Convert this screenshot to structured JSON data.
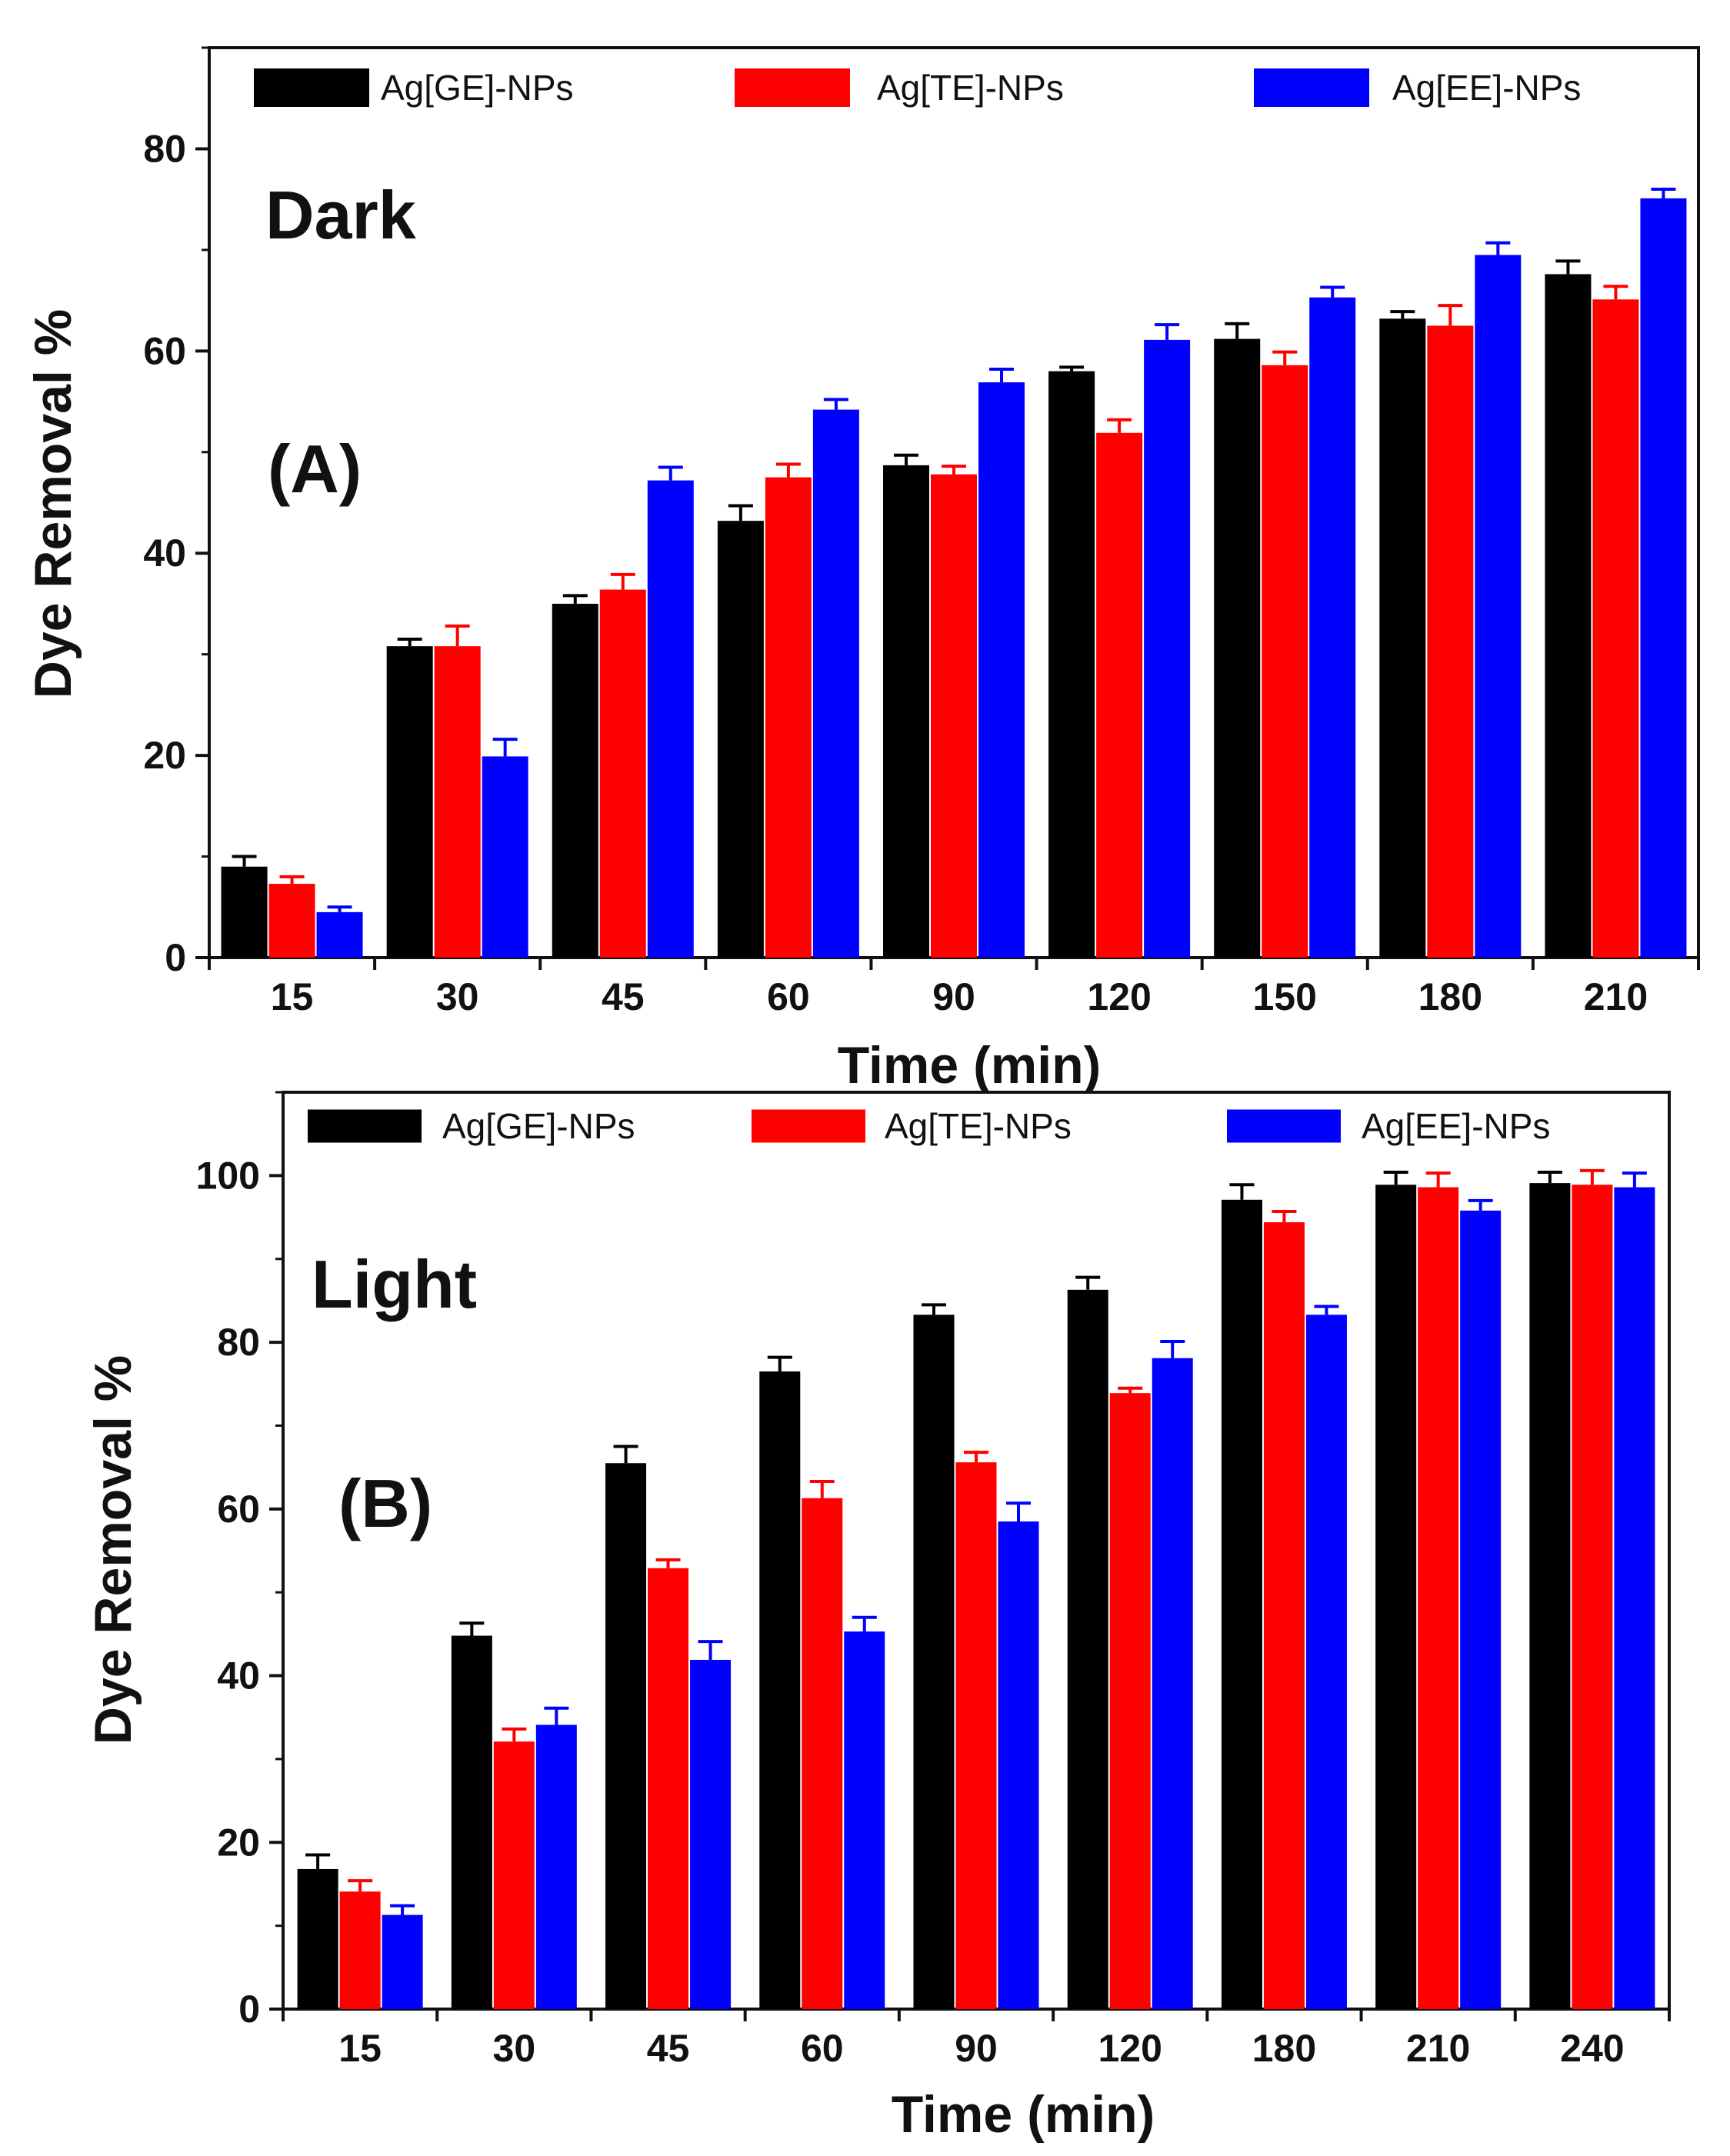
{
  "chart_data": [
    {
      "type": "bar",
      "panel": "(A)",
      "condition": "Dark",
      "xlabel": "Time (min)",
      "ylabel": "Dye Removal %",
      "ylim": [
        0,
        90
      ],
      "yticks": [
        0,
        20,
        40,
        60,
        80
      ],
      "categories": [
        "15",
        "30",
        "45",
        "60",
        "90",
        "120",
        "150",
        "180",
        "210"
      ],
      "series": [
        {
          "name": "Ag[GE]-NPs",
          "color": "#000000",
          "values": [
            9,
            30.8,
            35,
            43.2,
            48.7,
            58,
            61.2,
            63.2,
            67.6
          ],
          "errors": [
            1,
            0.7,
            0.8,
            1.5,
            1,
            0.4,
            1.5,
            0.7,
            1.3
          ]
        },
        {
          "name": "Ag[TE]-NPs",
          "color": "#ff0000",
          "values": [
            7.3,
            30.8,
            36.4,
            47.5,
            47.8,
            51.9,
            58.6,
            62.5,
            65.1
          ],
          "errors": [
            0.7,
            2,
            1.5,
            1.3,
            0.8,
            1.3,
            1.3,
            2,
            1.3
          ]
        },
        {
          "name": "Ag[EE]-NPs",
          "color": "#0000ff",
          "values": [
            4.5,
            19.9,
            47.2,
            54.2,
            56.9,
            61.1,
            65.3,
            69.5,
            75.1
          ],
          "errors": [
            0.5,
            1.7,
            1.3,
            1,
            1.3,
            1.5,
            1,
            1.2,
            0.9
          ]
        }
      ]
    },
    {
      "type": "bar",
      "panel": "(B)",
      "condition": "Light",
      "xlabel": "Time (min)",
      "ylabel": "Dye Removal %",
      "ylim": [
        0,
        110
      ],
      "yticks": [
        0,
        20,
        40,
        60,
        80,
        100
      ],
      "categories": [
        "15",
        "30",
        "45",
        "60",
        "90",
        "120",
        "180",
        "210",
        "240"
      ],
      "series": [
        {
          "name": "Ag[GE]-NPs",
          "color": "#000000",
          "values": [
            16.8,
            44.8,
            65.5,
            76.5,
            83.3,
            86.3,
            97.1,
            98.9,
            99.1
          ],
          "errors": [
            1.7,
            1.5,
            2,
            1.7,
            1.2,
            1.5,
            1.8,
            1.5,
            1.3
          ]
        },
        {
          "name": "Ag[TE]-NPs",
          "color": "#ff0000",
          "values": [
            14.1,
            32.1,
            52.9,
            61.3,
            65.6,
            73.9,
            94.4,
            98.6,
            98.9
          ],
          "errors": [
            1.3,
            1.5,
            1,
            2,
            1.2,
            0.6,
            1.3,
            1.7,
            1.7
          ]
        },
        {
          "name": "Ag[EE]-NPs",
          "color": "#0000ff",
          "values": [
            11.3,
            34.1,
            41.9,
            45.3,
            58.5,
            78.1,
            83.3,
            95.8,
            98.6
          ],
          "errors": [
            1.1,
            2,
            2.2,
            1.7,
            2.2,
            2,
            1,
            1.2,
            1.7
          ]
        }
      ]
    }
  ]
}
